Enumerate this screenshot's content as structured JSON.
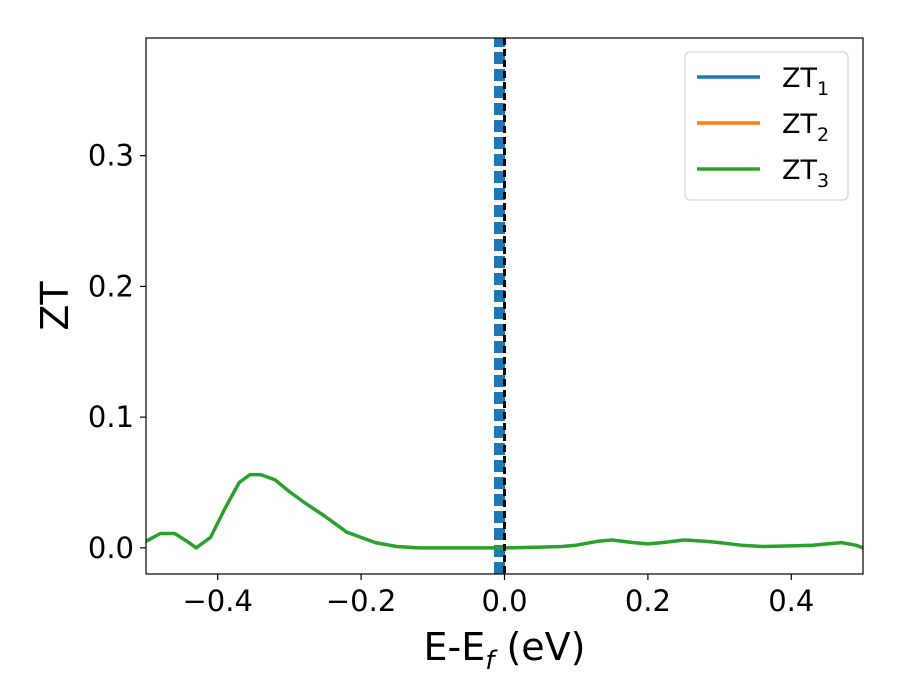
{
  "chart_data": {
    "type": "line",
    "xlabel": "E-E",
    "xlabel_subscript": "f",
    "xlabel_unit": " (eV)",
    "ylabel": "ZT",
    "xlim": [
      -0.5,
      0.5
    ],
    "ylim": [
      -0.02,
      0.39
    ],
    "x_ticks": [
      -0.4,
      -0.2,
      0.0,
      0.2,
      0.4
    ],
    "x_tick_labels": [
      "−0.4",
      "−0.2",
      "0.0",
      "0.2",
      "0.4"
    ],
    "y_ticks": [
      0.0,
      0.1,
      0.2,
      0.3
    ],
    "y_tick_labels": [
      "0.0",
      "0.1",
      "0.2",
      "0.3"
    ],
    "grid": false,
    "legend_position": "top-right",
    "vertical_line": {
      "x": 0.0,
      "color": "#000000",
      "style": "dashed"
    },
    "series": [
      {
        "name": "ZT",
        "name_subscript": "1",
        "color": "#1f77b4",
        "shape": "vertical-line",
        "x": [
          -0.007,
          -0.007
        ],
        "y": [
          -0.02,
          0.39
        ]
      },
      {
        "name": "ZT",
        "name_subscript": "2",
        "color": "#ff7f0e",
        "x": [],
        "y": []
      },
      {
        "name": "ZT",
        "name_subscript": "3",
        "color": "#2ca02c",
        "x": [
          -0.5,
          -0.48,
          -0.46,
          -0.44,
          -0.43,
          -0.41,
          -0.39,
          -0.37,
          -0.355,
          -0.34,
          -0.32,
          -0.3,
          -0.28,
          -0.25,
          -0.22,
          -0.2,
          -0.18,
          -0.15,
          -0.12,
          -0.08,
          -0.04,
          0.0,
          0.05,
          0.08,
          0.1,
          0.13,
          0.15,
          0.18,
          0.2,
          0.22,
          0.25,
          0.28,
          0.3,
          0.33,
          0.36,
          0.4,
          0.43,
          0.45,
          0.47,
          0.49,
          0.5
        ],
        "y": [
          0.005,
          0.011,
          0.011,
          0.004,
          0.0,
          0.008,
          0.03,
          0.05,
          0.056,
          0.056,
          0.052,
          0.043,
          0.035,
          0.024,
          0.012,
          0.008,
          0.004,
          0.001,
          0.0,
          0.0,
          0.0,
          0.0,
          0.0006,
          0.001,
          0.002,
          0.005,
          0.006,
          0.004,
          0.003,
          0.004,
          0.006,
          0.005,
          0.004,
          0.002,
          0.001,
          0.0015,
          0.002,
          0.003,
          0.004,
          0.002,
          0.0
        ]
      }
    ]
  }
}
